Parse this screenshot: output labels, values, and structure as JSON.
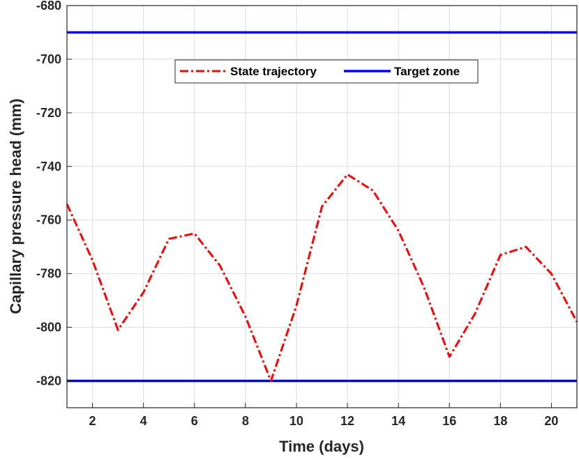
{
  "chart_data": {
    "type": "line",
    "xlabel": "Time (days)",
    "ylabel": "Capillary pressure head (mm)",
    "xlim": [
      1,
      21
    ],
    "ylim": [
      -830,
      -680
    ],
    "xticks": [
      2,
      4,
      6,
      8,
      10,
      12,
      14,
      16,
      18,
      20
    ],
    "yticks": [
      -680,
      -700,
      -720,
      -740,
      -760,
      -780,
      -800,
      -820
    ],
    "grid": true,
    "legend_position": "top-center",
    "series": [
      {
        "name": "State trajectory",
        "style": "dash-dot",
        "color": "#ff0000",
        "x": [
          1,
          2,
          3,
          4,
          5,
          6,
          7,
          8,
          9,
          10,
          11,
          12,
          13,
          14,
          15,
          16,
          17,
          18,
          19,
          20,
          21
        ],
        "y": [
          -754,
          -775,
          -801,
          -787,
          -767,
          -765,
          -777,
          -796,
          -820,
          -792,
          -755,
          -743,
          -749,
          -764,
          -785,
          -811,
          -795,
          -773,
          -770,
          -780,
          -798
        ]
      },
      {
        "name": "Target zone",
        "style": "solid",
        "color": "#0000ff",
        "bounds": [
          -690,
          -820
        ]
      }
    ]
  }
}
